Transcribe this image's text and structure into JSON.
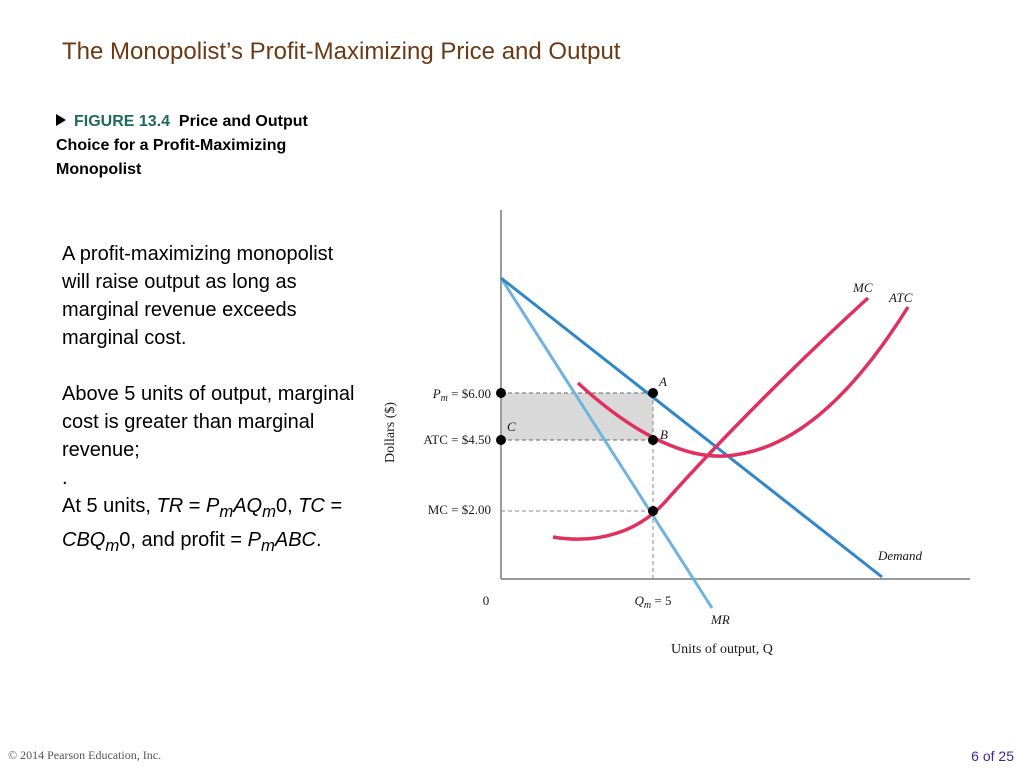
{
  "title": "The Monopolist’s Profit-Maximizing Price and Output",
  "figure": {
    "number": "FIGURE 13.4",
    "caption": "Price and Output Choice for a Profit-Maximizing Monopolist"
  },
  "body": {
    "p1": "A profit-maximizing monopolist will raise output as long as marginal revenue exceeds marginal cost.",
    "p2": "Above 5 units of output, marginal cost is greater than marginal revenue;",
    "dot": ".",
    "p3_prefix": "At 5 units, ",
    "tr": "TR",
    "eq1": " = ",
    "pm_p": "P",
    "pm_sub": "m",
    "aq": "AQ",
    "qm_sub": "m",
    "zero_comma": "0,",
    "tc": "TC",
    "eq2": " = ",
    "cbq": "CBQ",
    "qm_sub2": "m",
    "and_profit": "0, and profit = ",
    "pm_p2": "P",
    "pm_sub2": "m",
    "abc": "ABC",
    "period": "."
  },
  "chart_labels": {
    "y_axis": "Dollars ($)",
    "x_axis": "Units of output, Q",
    "origin": "0",
    "pm_p": "P",
    "pm_sub": "m",
    "pm_value": " = $6.00",
    "atc_value": "ATC = $4.50",
    "mc_value": "MC = $2.00",
    "qm_q": "Q",
    "qm_sub": "m",
    "qm_value": " = 5",
    "point_a": "A",
    "point_b": "B",
    "point_c": "C",
    "mc_curve": "MC",
    "atc_curve": "ATC",
    "demand_curve": "Demand",
    "mr_curve": "MR"
  },
  "colors": {
    "title": "#6b3a14",
    "figure_number": "#1f6b5a",
    "demand": "#2f86c8",
    "mr": "#6fb3e0",
    "cost_curves": "#e0305f",
    "profit_area": "#d9d9d9",
    "page_number": "#3a2a9a"
  },
  "footer": {
    "copyright": "© 2014 Pearson Education, Inc.",
    "page": "6 of 25"
  }
}
